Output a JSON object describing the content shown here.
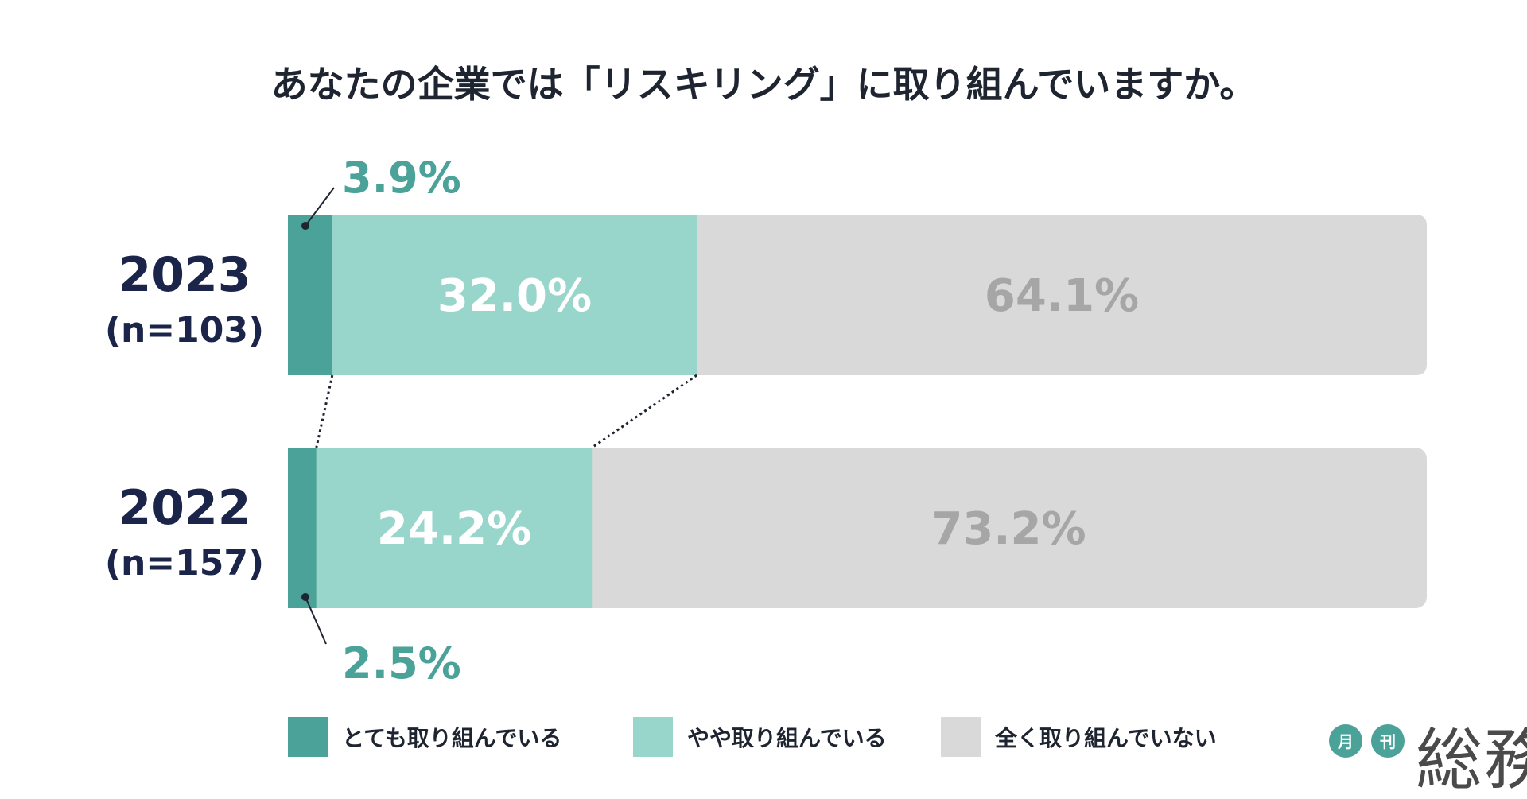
{
  "title": "あなたの企業では「リスキリング」に取り組んでいますか。",
  "colors": {
    "very": "#4aa299",
    "somewhat": "#98d6cc",
    "none": "#d9d9d9",
    "year_text": "#1b2449",
    "inner_label_light": "#ffffff",
    "inner_label_gray": "#a6a6a6",
    "outer_label": "#4aa299"
  },
  "chart_data": {
    "type": "bar",
    "orientation": "horizontal-stacked-100",
    "categories": [
      "2023",
      "2022"
    ],
    "sample_sizes": [
      "(n=103)",
      "(n=157)"
    ],
    "series": [
      {
        "name": "とても取り組んでいる",
        "values": [
          3.9,
          2.5
        ],
        "labels": [
          "3.9%",
          "2.5%"
        ]
      },
      {
        "name": "やや取り組んでいる",
        "values": [
          32.0,
          24.2
        ],
        "labels": [
          "32.0%",
          "24.2%"
        ]
      },
      {
        "name": "全く取り組んでいない",
        "values": [
          64.1,
          73.2
        ],
        "labels": [
          "64.1%",
          "73.2%"
        ]
      }
    ],
    "xlim": [
      0,
      100
    ],
    "legend_position": "bottom",
    "grid": false
  },
  "logo": {
    "circle1": "月",
    "circle2": "刊",
    "word": "総務",
    "icon": "gekkan-soumu-logo"
  }
}
